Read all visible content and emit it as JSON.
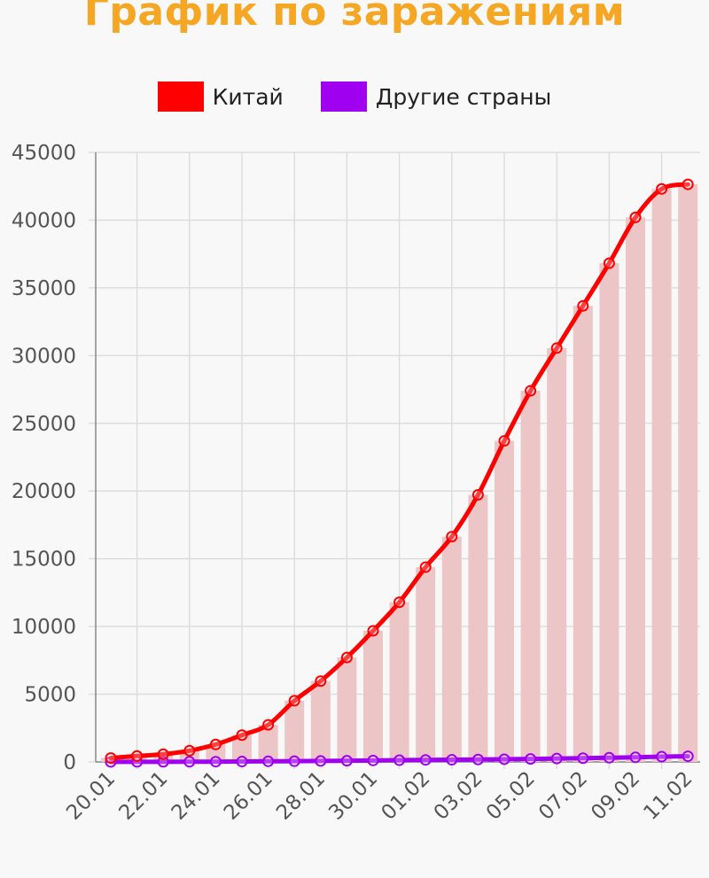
{
  "title": "График по заражениям",
  "colors": {
    "title": "#f5a623",
    "china": "#ff0000",
    "other": "#a000f0",
    "bars": "#ecc6c6",
    "grid": "#dddddd",
    "axis": "#888888"
  },
  "chart_data": {
    "type": "line",
    "title": "График по заражениям",
    "legend_position": "top",
    "grid": true,
    "ylim": [
      0,
      45000
    ],
    "yticks": [
      0,
      5000,
      10000,
      15000,
      20000,
      25000,
      30000,
      35000,
      40000,
      45000
    ],
    "x_tick_labels": [
      "20.01",
      "22.01",
      "24.01",
      "26.01",
      "28.01",
      "30.01",
      "01.02",
      "03.02",
      "05.02",
      "07.02",
      "09.02",
      "11.02"
    ],
    "series": [
      {
        "name": "Китай",
        "color": "#ff0000",
        "values": [
          290,
          440,
          570,
          830,
          1290,
          1980,
          2740,
          4520,
          5970,
          7710,
          9680,
          11790,
          14380,
          16630,
          19720,
          23700,
          27400,
          30550,
          33670,
          36820,
          40200,
          42300,
          42640
        ],
        "bars": true
      },
      {
        "name": "Другие страны",
        "color": "#a000f0",
        "values": [
          4,
          7,
          10,
          14,
          20,
          30,
          45,
          55,
          70,
          90,
          110,
          130,
          150,
          160,
          180,
          200,
          220,
          250,
          280,
          310,
          340,
          390,
          420
        ],
        "bars": false
      }
    ]
  }
}
